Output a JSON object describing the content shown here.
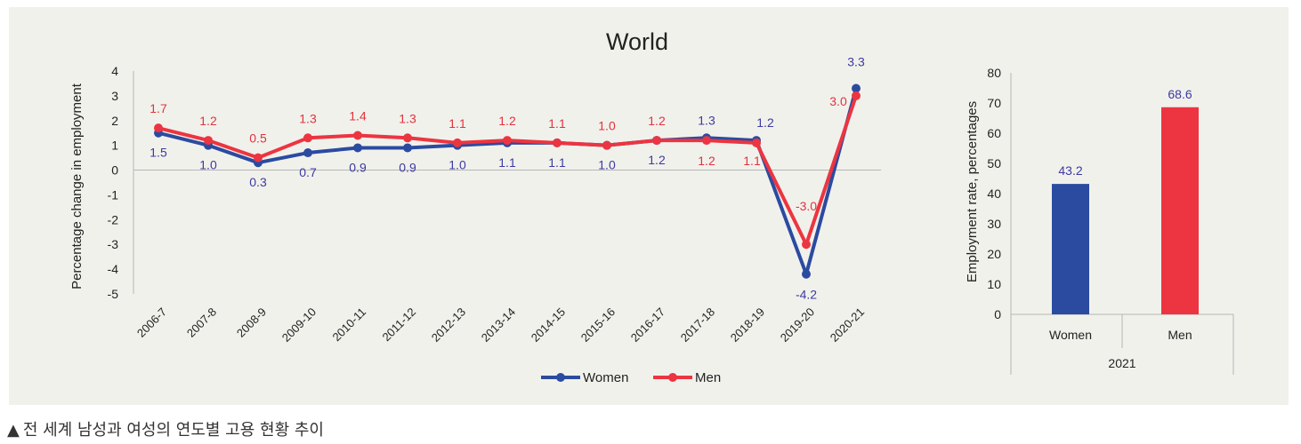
{
  "caption": {
    "marker": "▲",
    "text": "전 세계 남성과 여성의 연도별 고용 현황 추이"
  },
  "colors": {
    "women": "#2b4ba0",
    "men": "#ec3540",
    "panel_bg": "#f1f1ec",
    "axis": "#b5b5b5"
  },
  "chart_data": [
    {
      "type": "line",
      "title": "World",
      "xlabel": "",
      "ylabel": "Percentage change in employment",
      "ylim": [
        -5,
        4
      ],
      "yticks": [
        "4",
        "3",
        "2",
        "1",
        "0",
        "-1",
        "-2",
        "-3",
        "-4",
        "-5"
      ],
      "categories": [
        "2006-7",
        "2007-8",
        "2008-9",
        "2009-10",
        "2010-11",
        "2011-12",
        "2012-13",
        "2013-14",
        "2014-15",
        "2015-16",
        "2016-17",
        "2017-18",
        "2018-19",
        "2019-20",
        "2020-21"
      ],
      "series": [
        {
          "name": "Women",
          "values": [
            1.5,
            1.0,
            0.3,
            0.7,
            0.9,
            0.9,
            1.0,
            1.1,
            1.1,
            1.0,
            1.2,
            1.3,
            1.2,
            -4.2,
            3.3
          ],
          "labels": [
            "1.5",
            "1.0",
            "0.3",
            "0.7",
            "0.9",
            "0.9",
            "1.0",
            "1.1",
            "1.1",
            "1.0",
            "1.2",
            "1.3",
            "1.2",
            "-4.2",
            "3.3"
          ]
        },
        {
          "name": "Men",
          "values": [
            1.7,
            1.2,
            0.5,
            1.3,
            1.4,
            1.3,
            1.1,
            1.2,
            1.1,
            1.0,
            1.2,
            1.2,
            1.1,
            -3.0,
            3.0
          ],
          "labels": [
            "1.7",
            "1.2",
            "0.5",
            "1.3",
            "1.4",
            "1.3",
            "1.1",
            "1.2",
            "1.1",
            "1.0",
            "1.2",
            "1.2",
            "1.1",
            "-3.0",
            "3.0"
          ]
        }
      ],
      "legend": "bottom"
    },
    {
      "type": "bar",
      "title": "",
      "ylabel": "Employment rate, percentages",
      "ylim": [
        0,
        80
      ],
      "yticks": [
        "80",
        "70",
        "60",
        "50",
        "40",
        "30",
        "20",
        "10",
        "0"
      ],
      "categories": [
        "Women",
        "Men"
      ],
      "group_label": "2021",
      "values": [
        43.2,
        68.6
      ],
      "labels": [
        "43.2",
        "68.6"
      ]
    }
  ]
}
